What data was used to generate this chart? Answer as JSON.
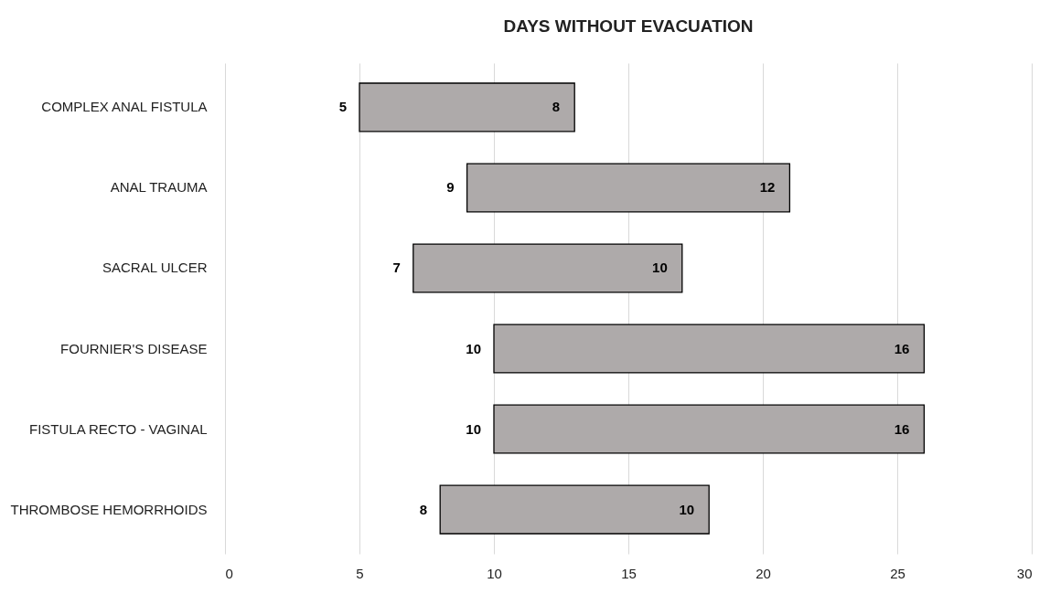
{
  "chart_data": {
    "type": "bar",
    "orientation": "horizontal",
    "title": "DAYS WITHOUT EVACUATION",
    "categories": [
      "COMPLEX ANAL FISTULA",
      "ANAL TRAUMA",
      "SACRAL ULCER",
      "FOURNIER'S DISEASE",
      "FISTULA RECTO - VAGINAL",
      "THROMBOSE HEMORRHOIDS"
    ],
    "base": [
      5,
      9,
      7,
      10,
      10,
      8
    ],
    "values": [
      8,
      12,
      10,
      16,
      16,
      10
    ],
    "color": "#aeaaaa",
    "xlim": [
      0,
      30
    ],
    "xticks": [
      0,
      5,
      10,
      15,
      20,
      25,
      30
    ],
    "grid": "x",
    "data_labels": true,
    "annotations": [
      {
        "text": "5",
        "x": 5,
        "y": "COMPLEX ANAL FISTULA"
      },
      {
        "text": "9",
        "x": 9,
        "y": "ANAL TRAUMA"
      },
      {
        "text": "7",
        "x": 7,
        "y": "SACRAL ULCER"
      },
      {
        "text": "10",
        "x": 10,
        "y": "FOURNIER'S DISEASE"
      },
      {
        "text": "10",
        "x": 10,
        "y": "FISTULA RECTO - VAGINAL"
      },
      {
        "text": "8",
        "x": 8,
        "y": "THROMBOSE HEMORRHOIDS"
      }
    ]
  }
}
